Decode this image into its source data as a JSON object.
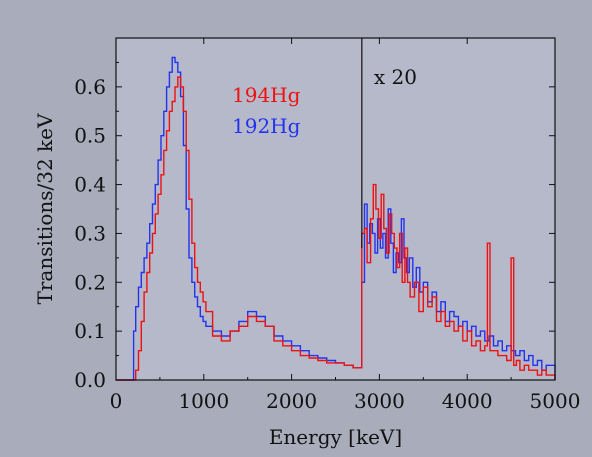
{
  "chart_data": {
    "type": "line",
    "title": "",
    "xlabel": "Energy [keV]",
    "ylabel": "Transitions/32 keV",
    "xlim": [
      0,
      5000
    ],
    "ylim": [
      0,
      0.7
    ],
    "xticks": [
      0,
      1000,
      2000,
      3000,
      4000,
      5000
    ],
    "xtick_labels": [
      "0",
      "1000",
      "2000",
      "3000",
      "4000",
      "5000"
    ],
    "yticks": [
      0.0,
      0.1,
      0.2,
      0.3,
      0.4,
      0.5,
      0.6
    ],
    "ytick_labels": [
      "0.0",
      "0.1",
      "0.2",
      "0.3",
      "0.4",
      "0.5",
      "0.6"
    ],
    "grid": false,
    "legend_position": "top-center",
    "bin_width": 32,
    "scale_divider_x": 2800,
    "scale_annotation": "x 20",
    "colors": {
      "background": "#a9adbb",
      "plot": "#b6b9c9",
      "axis": "#111111"
    },
    "series": [
      {
        "name": "194Hg",
        "color": "#ee1111",
        "x": [
          0,
          200,
          224,
          256,
          288,
          320,
          352,
          384,
          416,
          448,
          480,
          512,
          544,
          576,
          608,
          640,
          672,
          704,
          736,
          768,
          800,
          832,
          864,
          896,
          928,
          960,
          992,
          1024,
          1100,
          1200,
          1300,
          1400,
          1500,
          1600,
          1700,
          1800,
          1900,
          2000,
          2100,
          2200,
          2300,
          2400,
          2500,
          2600,
          2700,
          2780,
          2800,
          2830,
          2860,
          2900,
          2930,
          2960,
          2990,
          3020,
          3050,
          3080,
          3110,
          3140,
          3170,
          3200,
          3230,
          3260,
          3290,
          3320,
          3350,
          3400,
          3450,
          3500,
          3550,
          3600,
          3650,
          3700,
          3750,
          3800,
          3850,
          3900,
          3950,
          4000,
          4050,
          4100,
          4150,
          4200,
          4230,
          4260,
          4300,
          4350,
          4400,
          4450,
          4500,
          4530,
          4560,
          4600,
          4650,
          4700,
          4750,
          4800,
          4850,
          4900,
          4950,
          5000
        ],
        "y": [
          0,
          0,
          0.02,
          0.06,
          0.12,
          0.18,
          0.22,
          0.26,
          0.3,
          0.34,
          0.38,
          0.42,
          0.47,
          0.51,
          0.55,
          0.57,
          0.6,
          0.62,
          0.6,
          0.55,
          0.47,
          0.37,
          0.28,
          0.23,
          0.2,
          0.18,
          0.16,
          0.14,
          0.09,
          0.08,
          0.1,
          0.11,
          0.13,
          0.12,
          0.11,
          0.08,
          0.07,
          0.06,
          0.05,
          0.045,
          0.04,
          0.035,
          0.035,
          0.03,
          0.025,
          0.025,
          0.3,
          0.31,
          0.24,
          0.33,
          0.4,
          0.35,
          0.29,
          0.38,
          0.31,
          0.26,
          0.34,
          0.3,
          0.27,
          0.23,
          0.3,
          0.2,
          0.27,
          0.2,
          0.17,
          0.2,
          0.14,
          0.19,
          0.15,
          0.17,
          0.12,
          0.14,
          0.11,
          0.12,
          0.1,
          0.11,
          0.08,
          0.1,
          0.07,
          0.08,
          0.06,
          0.07,
          0.28,
          0.06,
          0.06,
          0.05,
          0.05,
          0.04,
          0.25,
          0.03,
          0.04,
          0.02,
          0.03,
          0.02,
          0.02,
          0.01,
          0.02,
          0.01,
          0.01,
          0.0
        ]
      },
      {
        "name": "192Hg",
        "color": "#2233ee",
        "x": [
          0,
          170,
          200,
          224,
          256,
          288,
          320,
          352,
          384,
          416,
          448,
          480,
          512,
          544,
          576,
          608,
          640,
          672,
          704,
          736,
          768,
          800,
          832,
          864,
          896,
          928,
          960,
          992,
          1024,
          1100,
          1200,
          1300,
          1400,
          1500,
          1600,
          1700,
          1800,
          1900,
          2000,
          2100,
          2200,
          2300,
          2400,
          2500,
          2600,
          2700,
          2780,
          2800,
          2830,
          2860,
          2890,
          2920,
          2950,
          2980,
          3010,
          3040,
          3070,
          3100,
          3130,
          3160,
          3190,
          3220,
          3250,
          3280,
          3310,
          3340,
          3380,
          3420,
          3460,
          3500,
          3550,
          3600,
          3650,
          3700,
          3750,
          3800,
          3850,
          3900,
          3950,
          4000,
          4050,
          4100,
          4150,
          4200,
          4250,
          4300,
          4350,
          4400,
          4450,
          4500,
          4550,
          4600,
          4650,
          4700,
          4750,
          4800,
          4850,
          4900,
          4950,
          5000
        ],
        "y": [
          0,
          0,
          0.1,
          0.15,
          0.19,
          0.22,
          0.25,
          0.28,
          0.32,
          0.36,
          0.4,
          0.45,
          0.5,
          0.55,
          0.6,
          0.63,
          0.66,
          0.65,
          0.63,
          0.58,
          0.48,
          0.35,
          0.25,
          0.2,
          0.17,
          0.15,
          0.13,
          0.12,
          0.11,
          0.1,
          0.09,
          0.1,
          0.12,
          0.14,
          0.13,
          0.11,
          0.09,
          0.08,
          0.07,
          0.06,
          0.05,
          0.045,
          0.04,
          0.035,
          0.03,
          0.025,
          0.025,
          0.2,
          0.36,
          0.28,
          0.32,
          0.3,
          0.26,
          0.33,
          0.27,
          0.3,
          0.25,
          0.35,
          0.28,
          0.22,
          0.26,
          0.24,
          0.33,
          0.25,
          0.22,
          0.25,
          0.19,
          0.23,
          0.18,
          0.2,
          0.16,
          0.18,
          0.14,
          0.16,
          0.12,
          0.14,
          0.13,
          0.11,
          0.12,
          0.1,
          0.11,
          0.09,
          0.1,
          0.08,
          0.09,
          0.07,
          0.08,
          0.06,
          0.07,
          0.06,
          0.05,
          0.06,
          0.04,
          0.05,
          0.03,
          0.04,
          0.02,
          0.03,
          0.03,
          0.0
        ]
      }
    ]
  }
}
